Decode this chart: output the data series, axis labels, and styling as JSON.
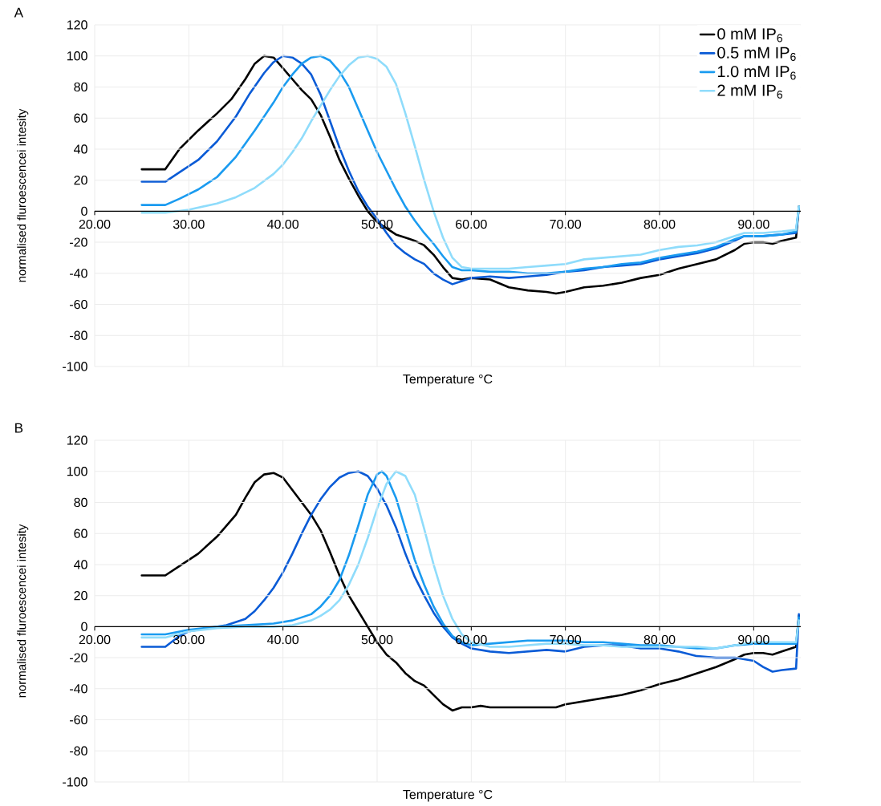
{
  "chart_data": [
    {
      "type": "line",
      "title": "A",
      "xlabel": "Temperature °C",
      "ylabel": "normalised fluroescencei intesity",
      "xlim": [
        20,
        95
      ],
      "ylim": [
        -100,
        120
      ],
      "xticks": [
        {
          "value": 20,
          "label": "20.00"
        },
        {
          "value": 30,
          "label": "30.00"
        },
        {
          "value": 40,
          "label": "40.00"
        },
        {
          "value": 50,
          "label": "50.00"
        },
        {
          "value": 60,
          "label": "60.00"
        },
        {
          "value": 70,
          "label": "70.00"
        },
        {
          "value": 80,
          "label": "80.00"
        },
        {
          "value": 90,
          "label": "90.00"
        }
      ],
      "yticks": [
        -100,
        -80,
        -60,
        -40,
        -20,
        0,
        20,
        40,
        60,
        80,
        100,
        120
      ],
      "grid": true,
      "legend": "top right",
      "series": [
        {
          "name": "0 mM IP$_{6}$",
          "color": "#000000",
          "x": [
            25,
            27.5,
            29,
            31,
            33,
            34.5,
            36,
            37,
            38,
            39,
            40,
            41,
            42,
            43,
            44,
            45,
            46,
            47,
            48,
            49,
            50,
            51,
            52,
            53,
            54,
            55,
            56,
            57,
            58,
            59,
            60,
            62,
            64,
            66,
            68,
            69,
            70,
            72,
            74,
            76,
            78,
            80,
            82,
            84,
            86,
            88,
            89,
            90,
            91,
            92,
            93,
            94.5,
            94.8
          ],
          "values": [
            27,
            27,
            40,
            52,
            63,
            72,
            85,
            95,
            100,
            99,
            92,
            85,
            78,
            72,
            62,
            48,
            33,
            21,
            10,
            0,
            -7,
            -11,
            -15,
            -17,
            -19,
            -22,
            -28,
            -36,
            -43,
            -44,
            -43,
            -44,
            -49,
            -51,
            -52,
            -53,
            -52,
            -49,
            -48,
            -46,
            -43,
            -41,
            -37,
            -34,
            -31,
            -25,
            -21,
            -20,
            -20,
            -21,
            -19,
            -17,
            3
          ]
        },
        {
          "name": "0.5 mM IP$_{6}$",
          "color": "#0a5bd6",
          "x": [
            25,
            27.5,
            29,
            31,
            33,
            35,
            36.5,
            38,
            39,
            40,
            41,
            42,
            43,
            44,
            45,
            46,
            47,
            48,
            49,
            50,
            51,
            52,
            53,
            54,
            55,
            56,
            57,
            58,
            59,
            60,
            62,
            64,
            66,
            68,
            70,
            72,
            74,
            76,
            78,
            80,
            82,
            84,
            86,
            88,
            89,
            91,
            93,
            94.5,
            94.8
          ],
          "values": [
            19,
            19,
            25,
            33,
            45,
            61,
            76,
            89,
            96,
            100,
            99,
            95,
            88,
            75,
            58,
            41,
            26,
            13,
            3,
            -5,
            -14,
            -22,
            -27,
            -31,
            -34,
            -40,
            -44,
            -47,
            -45,
            -43,
            -42,
            -43,
            -42,
            -41,
            -39,
            -38,
            -36,
            -35,
            -34,
            -31,
            -29,
            -27,
            -24,
            -19,
            -16,
            -16,
            -15,
            -14,
            2
          ]
        },
        {
          "name": "1.0 mM IP$_{6}$",
          "color": "#1a9bf0",
          "x": [
            25,
            27.5,
            29,
            31,
            33,
            35,
            37,
            39,
            40,
            41,
            42,
            43,
            44,
            45,
            46,
            47,
            48,
            49,
            50,
            51,
            52,
            53,
            54,
            55,
            56,
            57,
            58,
            59,
            60,
            62,
            64,
            66,
            68,
            70,
            72,
            74,
            76,
            78,
            80,
            82,
            84,
            86,
            88,
            89,
            91,
            93,
            94.5,
            94.8
          ],
          "values": [
            4,
            4,
            8,
            14,
            22,
            35,
            52,
            70,
            80,
            88,
            95,
            99,
            100,
            97,
            90,
            80,
            66,
            52,
            38,
            26,
            14,
            3,
            -6,
            -14,
            -21,
            -29,
            -36,
            -38,
            -38,
            -39,
            -39,
            -40,
            -40,
            -39,
            -37,
            -36,
            -34,
            -33,
            -30,
            -28,
            -26,
            -23,
            -18,
            -16,
            -16,
            -15,
            -13,
            3
          ]
        },
        {
          "name": "2 mM IP$_{6}$",
          "color": "#8fdcfb",
          "x": [
            25,
            27.5,
            30,
            33,
            35,
            37,
            39,
            40,
            41,
            42,
            43,
            44,
            45,
            46,
            47,
            48,
            49,
            50,
            51,
            52,
            53,
            54,
            55,
            56,
            57,
            58,
            59,
            60,
            62,
            64,
            66,
            68,
            70,
            72,
            74,
            76,
            78,
            80,
            82,
            84,
            86,
            88,
            89,
            91,
            93,
            94.5,
            94.8
          ],
          "values": [
            -1,
            -1,
            1,
            5,
            9,
            15,
            24,
            30,
            38,
            47,
            58,
            68,
            78,
            87,
            94,
            99,
            100,
            98,
            93,
            82,
            63,
            42,
            20,
            0,
            -17,
            -30,
            -36,
            -37,
            -37,
            -37,
            -36,
            -35,
            -34,
            -31,
            -30,
            -29,
            -28,
            -25,
            -23,
            -22,
            -20,
            -16,
            -14,
            -14,
            -13,
            -12,
            3
          ]
        }
      ]
    },
    {
      "type": "line",
      "title": "B",
      "xlabel": "Temperature °C",
      "ylabel": "normalised fluroescencei intesity",
      "xlim": [
        20,
        95
      ],
      "ylim": [
        -100,
        120
      ],
      "xticks": [
        {
          "value": 20,
          "label": "20.00"
        },
        {
          "value": 30,
          "label": "30.00"
        },
        {
          "value": 40,
          "label": "40.00"
        },
        {
          "value": 50,
          "label": "50.00"
        },
        {
          "value": 60,
          "label": "60.00"
        },
        {
          "value": 70,
          "label": "70.00"
        },
        {
          "value": 80,
          "label": "80.00"
        },
        {
          "value": 90,
          "label": "90.00"
        }
      ],
      "yticks": [
        -100,
        -80,
        -60,
        -40,
        -20,
        0,
        20,
        40,
        60,
        80,
        100,
        120
      ],
      "grid": true,
      "series": [
        {
          "color": "#000000",
          "x": [
            25,
            27.5,
            29,
            31,
            33,
            35,
            36,
            37,
            38,
            39,
            40,
            41,
            42,
            43,
            44,
            45,
            46,
            47,
            48,
            49,
            50,
            51,
            52,
            53,
            54,
            55,
            56,
            57,
            58,
            59,
            60,
            61,
            62,
            64,
            66,
            68,
            69,
            70,
            72,
            74,
            76,
            78,
            80,
            82,
            84,
            86,
            88,
            89,
            90,
            91,
            92,
            93,
            94.5,
            94.8
          ],
          "values": [
            33,
            33,
            39,
            47,
            58,
            72,
            83,
            93,
            98,
            99,
            96,
            88,
            80,
            72,
            62,
            48,
            33,
            20,
            10,
            0,
            -10,
            -18,
            -23,
            -30,
            -35,
            -38,
            -44,
            -50,
            -54,
            -52,
            -52,
            -51,
            -52,
            -52,
            -52,
            -52,
            -52,
            -50,
            -48,
            -46,
            -44,
            -41,
            -37,
            -34,
            -30,
            -26,
            -21,
            -18,
            -17,
            -17,
            -18,
            -16,
            -13,
            7
          ]
        },
        {
          "color": "#0a5bd6",
          "x": [
            25,
            27.5,
            29,
            30,
            32,
            34,
            36,
            37,
            38,
            39,
            40,
            41,
            42,
            43,
            44,
            45,
            46,
            47,
            48,
            49,
            50,
            51,
            52,
            53,
            54,
            55,
            56,
            57,
            58,
            59,
            60,
            62,
            64,
            66,
            68,
            70,
            72,
            74,
            76,
            78,
            80,
            82,
            84,
            86,
            88,
            90,
            91,
            92,
            93,
            94.5,
            94.8
          ],
          "values": [
            -13,
            -13,
            -6,
            -3,
            -1,
            1,
            5,
            10,
            17,
            25,
            35,
            47,
            60,
            72,
            82,
            90,
            96,
            99,
            100,
            97,
            89,
            78,
            64,
            47,
            32,
            20,
            9,
            0,
            -7,
            -11,
            -14,
            -16,
            -17,
            -16,
            -15,
            -16,
            -13,
            -12,
            -12,
            -14,
            -14,
            -16,
            -19,
            -20,
            -20,
            -22,
            -26,
            -29,
            -28,
            -27,
            8
          ]
        },
        {
          "color": "#1a9bf0",
          "x": [
            25,
            27.5,
            30,
            33,
            36,
            39,
            41,
            43,
            44,
            45,
            46,
            47,
            48,
            49,
            50,
            50.5,
            51,
            52,
            53,
            54,
            55,
            56,
            57,
            58,
            59,
            60,
            62,
            64,
            66,
            68,
            70,
            72,
            74,
            76,
            78,
            80,
            82,
            84,
            86,
            88,
            90,
            92,
            94,
            94.5,
            94.8
          ],
          "values": [
            -5,
            -5,
            -2,
            0,
            1,
            2,
            4,
            8,
            13,
            20,
            30,
            46,
            65,
            85,
            98,
            100,
            97,
            83,
            63,
            43,
            27,
            13,
            2,
            -6,
            -10,
            -12,
            -11,
            -10,
            -9,
            -9,
            -9,
            -10,
            -10,
            -11,
            -12,
            -12,
            -13,
            -14,
            -14,
            -12,
            -11,
            -11,
            -11,
            -11,
            6
          ]
        },
        {
          "color": "#8fdcfb",
          "x": [
            25,
            27.5,
            30,
            33,
            36,
            39,
            41,
            43,
            44,
            45,
            46,
            47,
            48,
            49,
            50,
            51,
            52,
            53,
            54,
            55,
            56,
            57,
            58,
            59,
            60,
            62,
            64,
            66,
            68,
            70,
            72,
            74,
            76,
            78,
            80,
            82,
            84,
            86,
            88,
            90,
            92,
            94,
            94.5,
            94.8
          ],
          "values": [
            -7,
            -7,
            -3,
            -1,
            0,
            0,
            1,
            4,
            7,
            11,
            17,
            27,
            40,
            57,
            76,
            92,
            100,
            97,
            85,
            63,
            40,
            20,
            5,
            -5,
            -10,
            -13,
            -13,
            -12,
            -11,
            -11,
            -12,
            -12,
            -13,
            -13,
            -13,
            -13,
            -13,
            -14,
            -12,
            -10,
            -10,
            -10,
            -10,
            4
          ]
        }
      ]
    }
  ]
}
